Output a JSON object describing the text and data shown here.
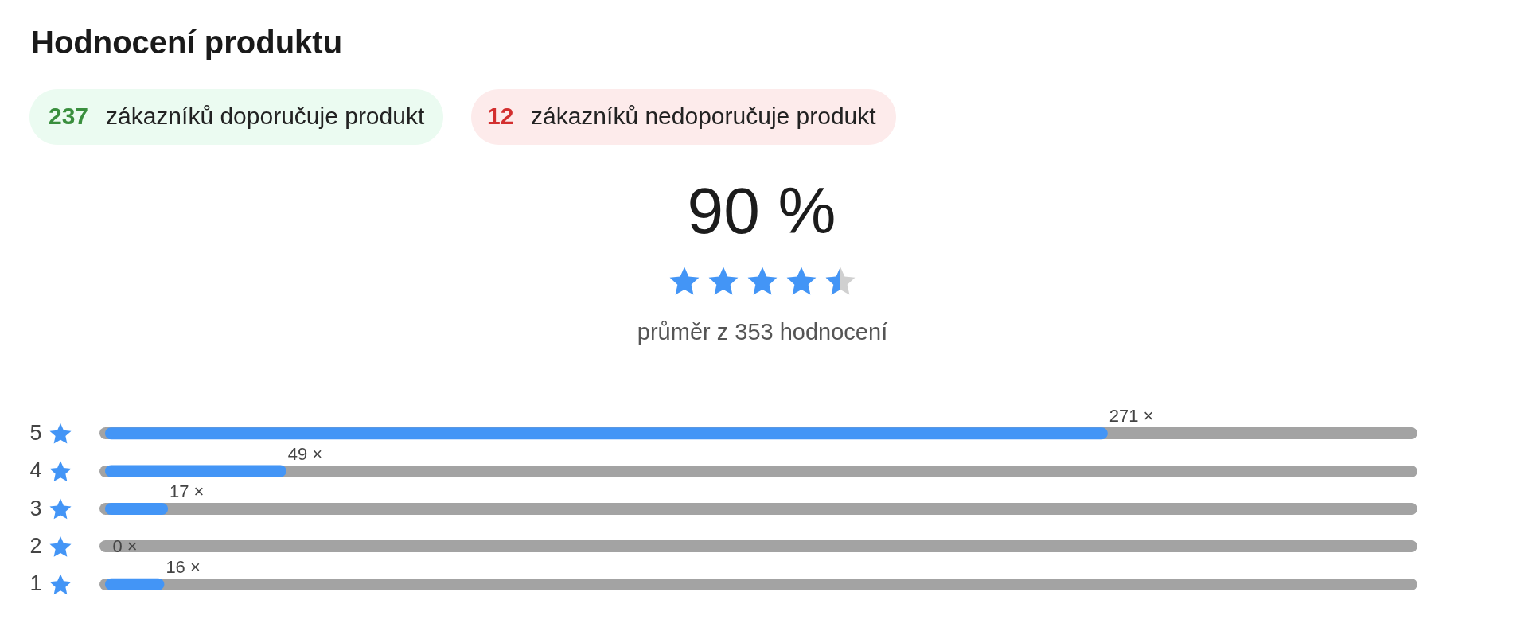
{
  "chart_data": {
    "type": "bar",
    "orientation": "horizontal",
    "title": "Hodnocení produktu",
    "categories": [
      "5",
      "4",
      "3",
      "2",
      "1"
    ],
    "values": [
      271,
      49,
      17,
      0,
      16
    ],
    "color": "#4395f6",
    "value_labels": [
      "271 ×",
      "49 ×",
      "17 ×",
      "0 ×",
      "16 ×"
    ],
    "tick_labels": "y",
    "grid": "y",
    "annotations": [
      "237",
      "zákazníků doporučuje produkt",
      "12",
      "zákazníků nedoporučuje produkt",
      "90 %",
      "průměr z 353 hodnocení"
    ]
  }
}
